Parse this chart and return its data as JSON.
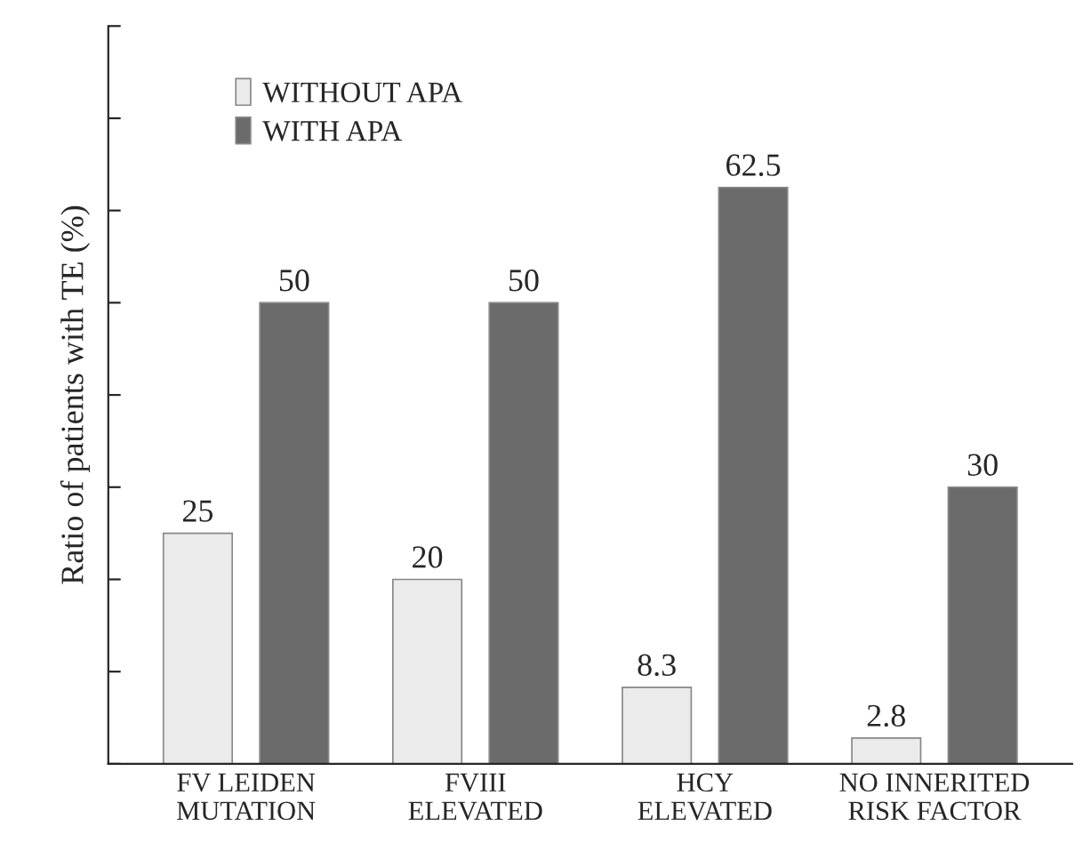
{
  "chart_data": {
    "type": "bar",
    "ylabel": "Ratio of patients with TE (%)",
    "categories": [
      "FV LEIDEN\nMUTATION",
      "FVIII\nELEVATED",
      "HCY\nELEVATED",
      "NO INNERITED\nRISK FACTOR"
    ],
    "series": [
      {
        "name": "WITHOUT APA",
        "color": "#ebebeb",
        "values": [
          25,
          20,
          8.3,
          2.8
        ]
      },
      {
        "name": "WITH APA",
        "color": "#6b6b6b",
        "values": [
          50,
          50,
          62.5,
          30
        ]
      }
    ],
    "ylim": [
      0,
      80
    ],
    "yticks": [
      {
        "value": 0,
        "label": null
      },
      {
        "value": 10,
        "label": null
      },
      {
        "value": 20,
        "label": null
      },
      {
        "value": 30,
        "label": null
      },
      {
        "value": 40,
        "label": null
      },
      {
        "value": 50,
        "label": null
      },
      {
        "value": 60,
        "label": null
      },
      {
        "value": 70,
        "label": null
      },
      {
        "value": 80,
        "label": null
      }
    ],
    "tick_labels": "x",
    "data_labels": true,
    "legend": "top left",
    "grid": false
  }
}
